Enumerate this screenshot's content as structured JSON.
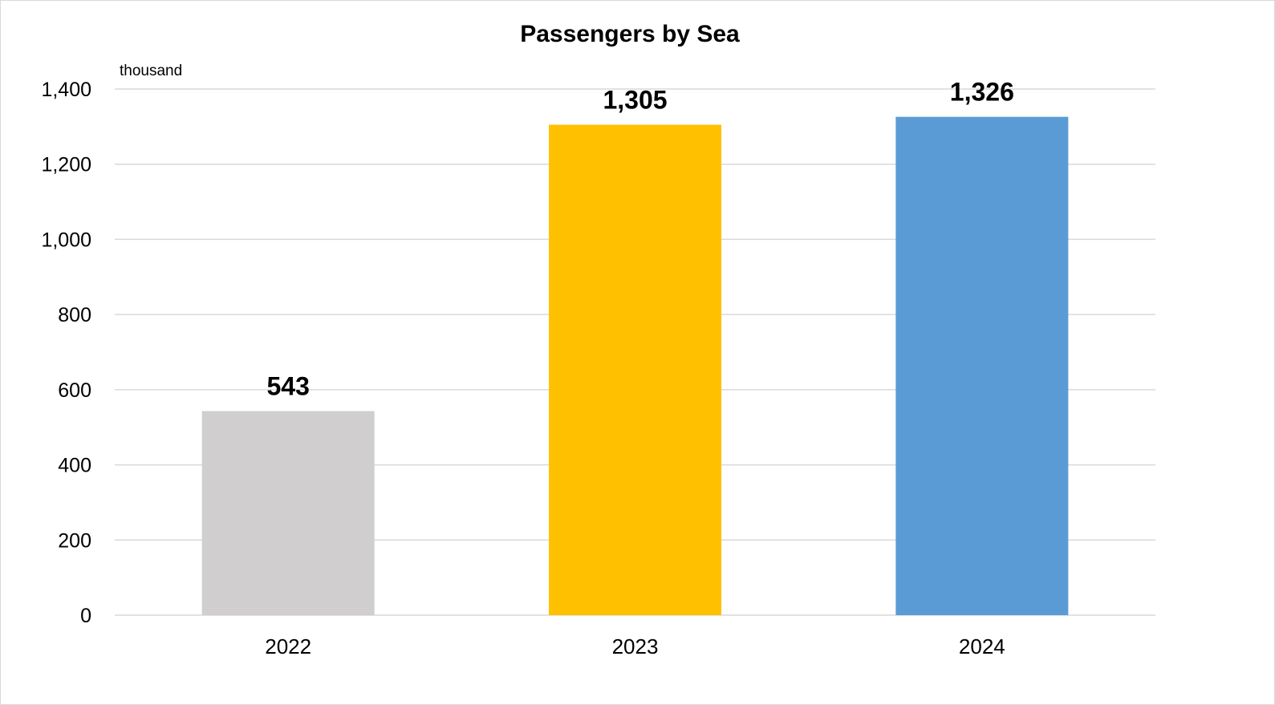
{
  "chart_data": {
    "type": "bar",
    "title": "Passengers by Sea",
    "unit_label": "thousand",
    "categories": [
      "2022",
      "2023",
      "2024"
    ],
    "values": [
      543,
      1305,
      1326
    ],
    "data_labels": [
      "543",
      "1,305",
      "1,326"
    ],
    "bar_colors": [
      "#d0cece",
      "#ffc000",
      "#5b9bd5"
    ],
    "ylim": [
      0,
      1400
    ],
    "yticks": [
      0,
      200,
      400,
      600,
      800,
      1000,
      1200,
      1400
    ],
    "ytick_labels": [
      "0",
      "200",
      "400",
      "600",
      "800",
      "1,000",
      "1,200",
      "1,400"
    ],
    "grid": true,
    "legend": "none",
    "xlabel": "",
    "ylabel": ""
  }
}
